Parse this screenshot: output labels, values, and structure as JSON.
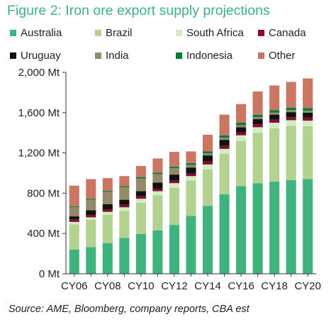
{
  "chart_data": {
    "type": "bar",
    "stacked": true,
    "title": "Figure 2: Iron ore export supply projections",
    "source": "Source: AME, Bloomberg, company reports, CBA est",
    "xlabel": "",
    "ylabel": "",
    "ylim": [
      0,
      2000
    ],
    "yticks": [
      {
        "value": 0,
        "label": "0 Mt"
      },
      {
        "value": 400,
        "label": "400 Mt"
      },
      {
        "value": 800,
        "label": "800 Mt"
      },
      {
        "value": 1200,
        "label": "1,200 Mt"
      },
      {
        "value": 1600,
        "label": "1,600 Mt"
      },
      {
        "value": 2000,
        "label": "2,000 Mt"
      }
    ],
    "grid": false,
    "legend_position": "top",
    "categories": [
      "CY06",
      "CY07",
      "CY08",
      "CY09",
      "CY10",
      "CY11",
      "CY12",
      "CY13",
      "CY14",
      "CY15",
      "CY16",
      "CY17",
      "CY18",
      "CY19",
      "CY20"
    ],
    "xtick_labels": [
      "CY06",
      "",
      "CY08",
      "",
      "CY10",
      "",
      "CY12",
      "",
      "CY14",
      "",
      "CY16",
      "",
      "CY18",
      "",
      "CY20"
    ],
    "series": [
      {
        "name": "Australia",
        "color": "#3fb37f",
        "values": [
          240,
          265,
          305,
          355,
          395,
          430,
          485,
          575,
          675,
          790,
          870,
          900,
          915,
          930,
          940
        ]
      },
      {
        "name": "Brazil",
        "color": "#b3d18f",
        "values": [
          250,
          270,
          280,
          270,
          310,
          350,
          370,
          350,
          360,
          400,
          450,
          500,
          530,
          540,
          525
        ]
      },
      {
        "name": "South Africa",
        "color": "#d3edc2",
        "values": [
          25,
          25,
          30,
          35,
          40,
          40,
          45,
          45,
          50,
          50,
          55,
          55,
          55,
          55,
          55
        ]
      },
      {
        "name": "Canada",
        "color": "#8a0a2e",
        "values": [
          25,
          25,
          25,
          25,
          25,
          25,
          25,
          25,
          30,
          30,
          30,
          30,
          30,
          30,
          30
        ]
      },
      {
        "name": "Uruguay",
        "color": "#111111",
        "values": [
          30,
          45,
          50,
          50,
          50,
          60,
          60,
          60,
          60,
          60,
          50,
          50,
          50,
          50,
          50
        ]
      },
      {
        "name": "India",
        "color": "#948a6a",
        "values": [
          90,
          105,
          125,
          125,
          125,
          85,
          65,
          25,
          20,
          20,
          20,
          20,
          20,
          20,
          20
        ]
      },
      {
        "name": "Indonesia",
        "color": "#0a7a3e",
        "values": [
          10,
          10,
          10,
          10,
          15,
          15,
          15,
          20,
          20,
          25,
          25,
          25,
          25,
          25,
          25
        ]
      },
      {
        "name": "Other",
        "color": "#cb7563",
        "values": [
          205,
          195,
          125,
          100,
          110,
          140,
          145,
          115,
          165,
          205,
          185,
          230,
          245,
          255,
          295
        ]
      }
    ]
  }
}
